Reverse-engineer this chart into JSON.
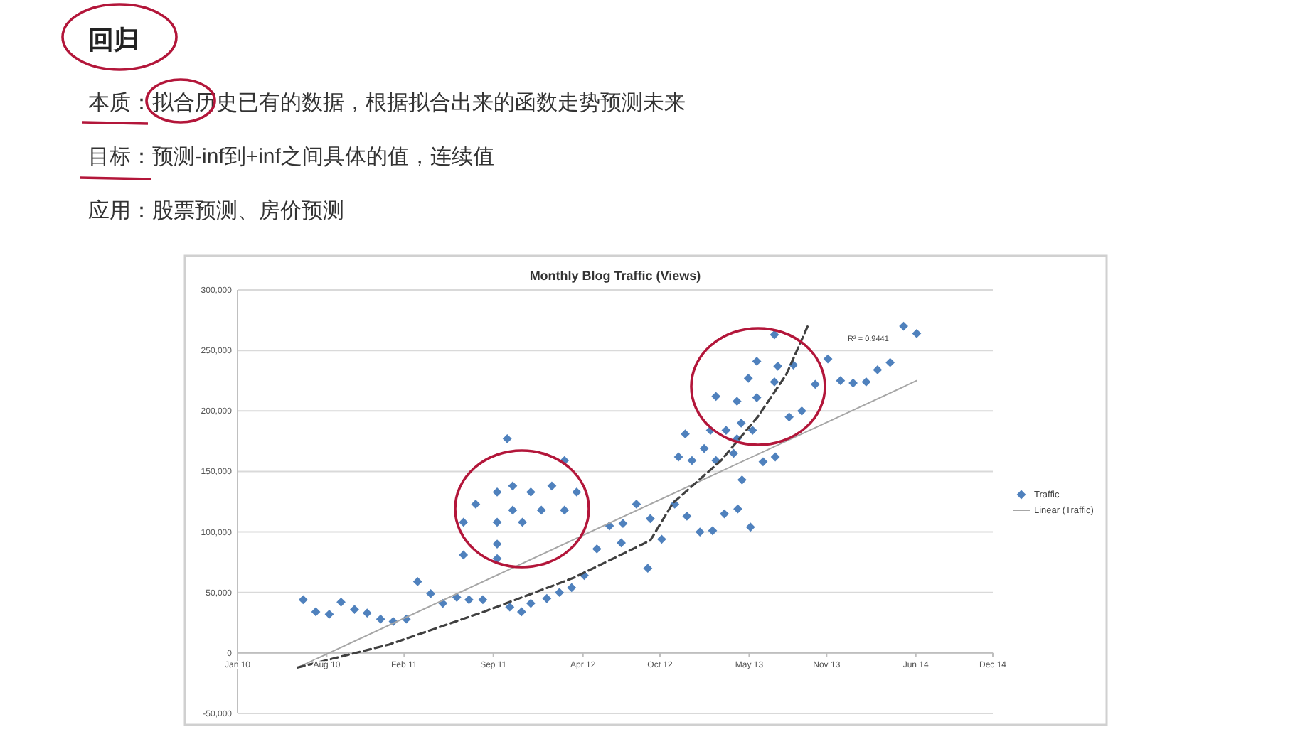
{
  "chart_data": [
    {
      "type": "other",
      "title": "回归",
      "annotations": [
        "本质：拟合历史已有的数据，根据拟合出来的函数走势预测未来",
        "目标：预测-inf到+inf之间具体的值，连续值",
        "应用：股票预测、房价预测"
      ]
    },
    {
      "type": "scatter",
      "title": "Monthly Blog Traffic (Views)",
      "xlim": [
        "2010-01-01",
        "2014-12-01"
      ],
      "xticks": [
        {
          "value": "2010-01-01",
          "label": "Jan 10"
        },
        {
          "value": "2010-08-01",
          "label": "Aug 10"
        },
        {
          "value": "2011-02-01",
          "label": "Feb 11"
        },
        {
          "value": "2011-09-01",
          "label": "Sep 11"
        },
        {
          "value": "2012-04-01",
          "label": "Apr 12"
        },
        {
          "value": "2012-10-01",
          "label": "Oct 12"
        },
        {
          "value": "2013-05-01",
          "label": "May 13"
        },
        {
          "value": "2013-11-01",
          "label": "Nov 13"
        },
        {
          "value": "2014-06-01",
          "label": "Jun 14"
        },
        {
          "value": "2014-12-01",
          "label": "Dec 14"
        }
      ],
      "ylim": [
        -50000,
        300000
      ],
      "yticks": [
        {
          "value": -50000,
          "label": "-50,000"
        },
        {
          "value": 0,
          "label": "0"
        },
        {
          "value": 50000,
          "label": "50,000"
        },
        {
          "value": 100000,
          "label": "100,000"
        },
        {
          "value": 150000,
          "label": "150,000"
        },
        {
          "value": 200000,
          "label": "200,000"
        },
        {
          "value": 250000,
          "label": "250,000"
        },
        {
          "value": 300000,
          "label": "300,000"
        }
      ],
      "grid": "y",
      "legend": "right",
      "annotations": [
        "R² = 0.9441"
      ],
      "series": [
        {
          "name": "Traffic",
          "type": "scatter",
          "marker": "diamond",
          "color": "#4f81bd",
          "x": [
            "2010-06-06",
            "2010-07-06",
            "2010-08-07",
            "2010-09-04",
            "2010-10-06",
            "2010-11-05",
            "2010-12-07",
            "2011-01-06",
            "2011-02-06",
            "2011-03-05",
            "2011-04-05",
            "2011-05-04",
            "2011-06-06",
            "2011-06-22",
            "2011-06-22",
            "2011-07-05",
            "2011-07-21",
            "2011-08-07",
            "2011-09-10",
            "2011-09-10",
            "2011-09-10",
            "2011-09-10",
            "2011-10-04",
            "2011-10-10",
            "2011-10-17",
            "2011-10-17",
            "2011-11-07",
            "2011-11-09",
            "2011-11-29",
            "2011-11-29",
            "2011-12-24",
            "2012-01-06",
            "2012-01-18",
            "2012-02-05",
            "2012-02-17",
            "2012-02-17",
            "2012-03-05",
            "2012-03-17",
            "2012-04-04",
            "2012-05-04",
            "2012-06-03",
            "2012-07-01",
            "2012-07-05",
            "2012-08-06",
            "2012-09-02",
            "2012-09-08",
            "2012-10-05",
            "2012-11-05",
            "2012-11-14",
            "2012-11-30",
            "2012-12-04",
            "2012-12-16",
            "2013-01-04",
            "2013-01-14",
            "2013-01-29",
            "2013-02-03",
            "2013-02-11",
            "2013-02-11",
            "2013-03-03",
            "2013-03-07",
            "2013-03-25",
            "2013-04-02",
            "2013-04-02",
            "2013-04-04",
            "2013-04-12",
            "2013-04-14",
            "2013-04-29",
            "2013-05-04",
            "2013-05-09",
            "2013-05-19",
            "2013-05-19",
            "2013-06-03",
            "2013-06-30",
            "2013-06-30",
            "2013-07-02",
            "2013-07-08",
            "2013-08-04",
            "2013-08-14",
            "2013-09-03",
            "2013-10-05",
            "2013-11-04",
            "2013-12-04",
            "2014-01-03",
            "2014-02-03",
            "2014-03-02",
            "2014-04-01",
            "2014-05-03",
            "2014-06-03"
          ],
          "values": [
            44000,
            34000,
            32000,
            42000,
            36000,
            33000,
            28000,
            26000,
            28000,
            59000,
            49000,
            41000,
            46000,
            81000,
            108000,
            44000,
            123000,
            44000,
            78000,
            90000,
            108000,
            133000,
            177000,
            38000,
            138000,
            118000,
            34000,
            108000,
            41000,
            133000,
            118000,
            45000,
            138000,
            50000,
            159000,
            118000,
            54000,
            133000,
            64000,
            86000,
            105000,
            91000,
            107000,
            123000,
            70000,
            111000,
            94000,
            123000,
            162000,
            181000,
            113000,
            159000,
            100000,
            169000,
            184000,
            101000,
            212000,
            159000,
            115000,
            184000,
            165000,
            208000,
            177000,
            119000,
            190000,
            143000,
            227000,
            104000,
            184000,
            211000,
            241000,
            158000,
            224000,
            263000,
            162000,
            237000,
            195000,
            238000,
            200000,
            222000,
            243000,
            225000,
            223000,
            224000,
            234000,
            240000,
            270000,
            264000
          ]
        },
        {
          "name": "Linear (Traffic)",
          "type": "line",
          "color": "#a6a6a6",
          "line_style": "solid",
          "x": [
            "2010-05-24",
            "2014-06-03"
          ],
          "values": [
            -12000,
            225000
          ]
        },
        {
          "type": "line",
          "color": "#404040",
          "line_style": "dashed",
          "x": [
            "2010-05-24",
            "2010-12-27",
            "2011-08-09",
            "2012-03-09",
            "2012-09-08",
            "2012-11-01",
            "2013-02-23",
            "2013-05-21",
            "2013-07-28",
            "2013-09-17"
          ],
          "values": [
            -12000,
            7000,
            34000,
            62000,
            93000,
            124000,
            159000,
            195000,
            230000,
            270000
          ]
        }
      ]
    }
  ]
}
